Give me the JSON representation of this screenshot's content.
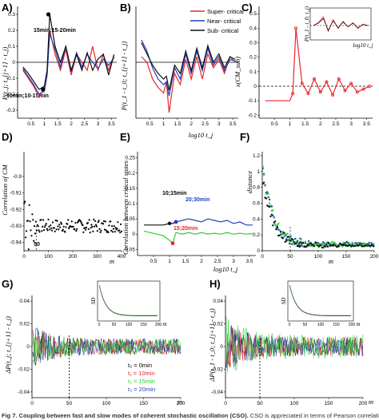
{
  "caption": {
    "bold": "Fig 7. Coupling between fast and slow modes of coherent stochastic oscillation (CSO).",
    "text": " CSO is appreciated in terms of Pearson correlations (r-"
  },
  "colors": {
    "red": "#e8262b",
    "blue": "#1f3fbf",
    "black": "#111111",
    "green": "#2fcf2f"
  },
  "chart_data": [
    {
      "panel": "A)",
      "type": "line",
      "ylabel": "P(t_j; t_{j+1} - t_j)",
      "xlabel": "",
      "x": [
        0.2,
        0.4,
        0.6,
        0.8,
        1.0,
        1.1,
        1.2,
        1.4,
        1.6,
        1.8,
        2.0,
        2.2,
        2.4,
        2.6,
        2.8,
        3.0,
        3.2,
        3.4,
        3.6
      ],
      "series": [
        {
          "name": "red",
          "values": [
            -0.05,
            -0.1,
            -0.15,
            -0.22,
            -0.16,
            -0.08,
            0.2,
            0.05,
            -0.05,
            0.08,
            -0.08,
            0.05,
            0.0,
            -0.05,
            0.1,
            -0.05,
            0.05,
            -0.05,
            0.04
          ]
        },
        {
          "name": "blue",
          "values": [
            -0.04,
            -0.09,
            -0.14,
            -0.2,
            -0.18,
            -0.08,
            0.18,
            0.08,
            -0.03,
            0.1,
            -0.06,
            0.06,
            -0.03,
            0.05,
            0.0,
            -0.04,
            0.02,
            -0.02,
            0.03
          ]
        },
        {
          "name": "black",
          "values": [
            -0.03,
            -0.07,
            -0.12,
            -0.17,
            -0.15,
            -0.05,
            0.3,
            0.1,
            0.0,
            0.1,
            -0.05,
            0.05,
            -0.05,
            0.06,
            -0.05,
            0.02,
            0.05,
            -0.08,
            0.05
          ]
        }
      ],
      "yticks": [
        -0.3,
        -0.2,
        -0.1,
        0,
        0.1,
        0.2,
        0.3
      ],
      "xticks": [
        0.5,
        1.0,
        1.5,
        2.0,
        2.5,
        3.0,
        3.5
      ],
      "ylim": [
        -0.35,
        0.35
      ],
      "xlim": [
        0,
        3.7
      ],
      "annotations": [
        {
          "text": "15min;15-20min",
          "x": 1.15,
          "y": 0.3,
          "point": true
        },
        {
          "text": "10min;10-15min",
          "x": 0.95,
          "y": -0.17,
          "point": true
        }
      ]
    },
    {
      "panel": "B)",
      "type": "line",
      "ylabel": "P(t_1 - t_0; t_{j+1} - t_j)",
      "xlabel": "",
      "x": [
        0.2,
        0.4,
        0.6,
        0.8,
        1.0,
        1.1,
        1.2,
        1.4,
        1.6,
        1.8,
        2.0,
        2.2,
        2.4,
        2.6,
        2.8,
        3.0,
        3.2,
        3.4,
        3.6
      ],
      "series": [
        {
          "name": "Super- critical",
          "values": [
            0.1,
            0.0,
            -0.3,
            -0.45,
            -0.55,
            -0.35,
            -0.9,
            -0.2,
            -0.4,
            0.05,
            -0.3,
            0.1,
            -0.3,
            0.15,
            -0.1,
            0.05,
            -0.2,
            0.1,
            0.0
          ]
        },
        {
          "name": "Near- critical",
          "values": [
            0.4,
            0.2,
            -0.1,
            -0.3,
            -0.4,
            -0.35,
            -0.6,
            -0.1,
            -0.3,
            0.15,
            -0.2,
            0.2,
            -0.15,
            0.25,
            -0.05,
            0.1,
            -0.15,
            0.05,
            0.02
          ]
        },
        {
          "name": "Sub- critical",
          "values": [
            0.35,
            0.15,
            -0.05,
            -0.2,
            -0.3,
            -0.25,
            -0.5,
            -0.05,
            -0.2,
            0.2,
            -0.15,
            0.25,
            -0.1,
            0.3,
            0.0,
            0.15,
            -0.1,
            0.1,
            0.05
          ]
        }
      ],
      "xticks": [
        0.5,
        1.0,
        1.5,
        2.0,
        2.5,
        3.0,
        3.5
      ],
      "ylim": [
        -1.0,
        1.0
      ],
      "xlim": [
        0,
        3.7
      ],
      "legend": "top-right"
    },
    {
      "panel": "C)",
      "type": "line",
      "ylabel": "x(CM_sub)",
      "xlabel": "log10 t_j",
      "x": [
        0.2,
        0.4,
        0.6,
        0.8,
        1.0,
        1.1,
        1.2,
        1.4,
        1.6,
        1.8,
        2.0,
        2.2,
        2.4,
        2.6,
        2.8,
        3.0,
        3.2,
        3.4,
        3.6
      ],
      "series": [
        {
          "name": "red",
          "values": [
            -0.1,
            -0.1,
            -0.1,
            -0.1,
            -0.1,
            -0.05,
            0.4,
            0.02,
            -0.05,
            0.05,
            -0.04,
            0.03,
            -0.06,
            0.05,
            -0.03,
            0.02,
            -0.04,
            -0.02,
            0.0
          ]
        }
      ],
      "yticks": [
        -0.2,
        -0.1,
        0,
        0.1,
        0.2,
        0.3,
        0.4,
        0.5
      ],
      "xticks": [
        0.5,
        1.0,
        1.5,
        2.0,
        2.5,
        3.0,
        3.5
      ],
      "ylim": [
        -0.22,
        0.55
      ],
      "xlim": [
        0,
        3.7
      ],
      "inset": {
        "ylabel": "P(t_1 - t_0; t_j)",
        "xlabel": "log10 t_j",
        "values": [
          0.0,
          0.1,
          0.3,
          -0.2,
          0.2,
          -0.1,
          0.15,
          -0.05,
          0.1,
          -0.1,
          0.05,
          0.0
        ]
      }
    },
    {
      "panel": "D)",
      "type": "scatter",
      "ylabel": "Correlation of CM",
      "xlabel": "m",
      "xticks": [
        0,
        100,
        200,
        300,
        400
      ],
      "yticks": [
        -0.9,
        -0.91,
        -0.92,
        -0.93,
        -0.94
      ],
      "xlim": [
        0,
        400
      ],
      "ylim": [
        -0.945,
        -0.885
      ],
      "marker_text": "50"
    },
    {
      "panel": "E)",
      "type": "line",
      "ylabel": "Correlation between critical states",
      "xlabel": "log10 t_j",
      "x": [
        0.2,
        0.4,
        0.6,
        0.8,
        1.0,
        1.1,
        1.2,
        1.4,
        1.6,
        1.8,
        2.0,
        2.2,
        2.4,
        2.6,
        2.8,
        3.0,
        3.2,
        3.4,
        3.6
      ],
      "series": [
        {
          "name": "green",
          "values": [
            0.01,
            0.005,
            0.0,
            -0.005,
            -0.02,
            -0.03,
            0.005,
            0.0,
            0.005,
            0.0,
            0.005,
            0.0,
            0.003,
            0.0,
            0.005,
            0.0,
            0.003,
            0.0,
            0.002
          ]
        },
        {
          "name": "blue",
          "values": [
            null,
            null,
            null,
            null,
            null,
            null,
            0.04,
            0.045,
            0.05,
            0.045,
            0.04,
            0.05,
            0.045,
            0.04,
            0.045,
            0.035,
            0.04,
            0.03,
            0.03
          ]
        },
        {
          "name": "black",
          "values": [
            0.03,
            0.03,
            0.03,
            0.03,
            0.035,
            0.035,
            0.04,
            null,
            null,
            null,
            null,
            null,
            null,
            null,
            null,
            null,
            null,
            null,
            null
          ]
        }
      ],
      "yticks": [
        -0.05,
        0,
        0.05,
        0.1,
        0.15,
        0.2,
        0.25
      ],
      "xticks": [
        0.5,
        1.0,
        1.5,
        2.0,
        2.5,
        3.0,
        3.5
      ],
      "ylim": [
        -0.07,
        0.27
      ],
      "xlim": [
        0,
        3.7
      ],
      "annotations": [
        {
          "text": "20;30min",
          "x": 1.25,
          "y": 0.042,
          "color": "blue"
        },
        {
          "text": "10;15min",
          "x": 0.9,
          "y": 0.035,
          "color": "black"
        },
        {
          "text": "15;20min",
          "x": 1.05,
          "y": -0.03,
          "color": "red"
        }
      ]
    },
    {
      "panel": "F)",
      "type": "scatter",
      "ylabel": "distance",
      "xlabel": "m",
      "xticks": [
        0,
        50,
        100,
        150,
        200
      ],
      "yticks": [
        0.0,
        0.2,
        0.4,
        0.6,
        0.8,
        1.0,
        1.2
      ],
      "xlim": [
        0,
        200
      ],
      "ylim": [
        0,
        1.25
      ],
      "marker_text": "50"
    },
    {
      "panel": "G)",
      "type": "line",
      "ylabel": "ΔP(t_j; t_{j+1} - t_j)",
      "xlabel": "m",
      "xticks": [
        0,
        50,
        100,
        150,
        200
      ],
      "yticks": [
        -0.04,
        -0.02,
        0,
        0.02,
        0.04
      ],
      "xlim": [
        0,
        200
      ],
      "ylim": [
        -0.045,
        0.045
      ],
      "legend_items": [
        {
          "label": "t₀ = 0min",
          "color": "black"
        },
        {
          "label": "t₁ = 10min",
          "color": "red"
        },
        {
          "label": "t₂ = 15min",
          "color": "green"
        },
        {
          "label": "t₃ = 20min",
          "color": "blue"
        }
      ],
      "inset": {
        "ylabel": "SD",
        "xlabel": "m",
        "xticks": [
          0,
          50,
          100,
          150,
          200
        ]
      }
    },
    {
      "panel": "H)",
      "type": "line",
      "ylabel": "ΔP(t_1 - t_0; t_{j+1} - t_j)",
      "xlabel": "m",
      "xticks": [
        0,
        50,
        100,
        150,
        200
      ],
      "yticks": [
        -0.04,
        -0.02,
        0,
        0.02,
        0.04
      ],
      "xlim": [
        0,
        200
      ],
      "ylim": [
        -0.045,
        0.045
      ],
      "inset": {
        "ylabel": "SD",
        "xlabel": "m",
        "xticks": [
          0,
          50,
          100,
          150,
          200
        ]
      }
    }
  ]
}
